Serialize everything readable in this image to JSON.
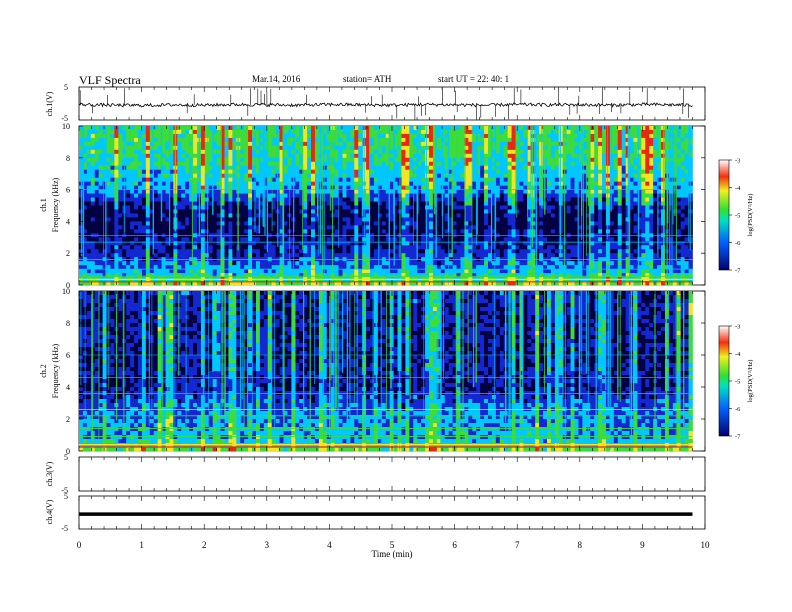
{
  "header": {
    "title": "VLF  Spectra",
    "date": "Mar.14,  2016",
    "station": "station= ATH",
    "start": "start  UT  =    22: 40: 1"
  },
  "colors": {
    "spec_dark": "#020040",
    "spec_blue": "#1428d2",
    "spec_cyan": "#00c8ff",
    "spec_green": "#3cdc3c",
    "spec_yellow": "#f0e628",
    "spec_red": "#e62814",
    "trace": "#000000"
  },
  "chart_data": [
    {
      "type": "line",
      "ylabel": "ch.1(V)",
      "ylim": [
        -5,
        5
      ],
      "y_ticks": [
        "5",
        "-5"
      ],
      "xlim": [
        0,
        10
      ],
      "x": [
        0,
        0.5,
        1,
        1.5,
        2,
        2.5,
        3,
        3.5,
        4,
        4.5,
        5,
        5.5,
        6,
        6.5,
        7,
        7.5,
        8,
        8.5,
        9,
        9.5,
        9.8
      ],
      "y": [
        -0.3,
        -0.5,
        -0.6,
        -0.4,
        -0.5,
        -0.3,
        -0.4,
        -0.5,
        -0.3,
        -0.4,
        -0.5,
        -0.3,
        -0.4,
        -0.5,
        -0.3,
        -0.4,
        -0.4,
        -0.5,
        -0.3,
        -0.4,
        -0.5
      ]
    },
    {
      "type": "heatmap",
      "ylabel": "ch.1\nFrequency  (kHz)",
      "ylim": [
        0,
        10
      ],
      "y_ticks": [
        "0",
        "2",
        "4",
        "6",
        "8",
        "10"
      ],
      "xlim": [
        0,
        10
      ],
      "data_end_min": 9.8,
      "colorbar": {
        "label": "log(PSD(V²/Hz)",
        "range": [
          -7,
          -3
        ],
        "ticks": [
          "-3",
          "-4",
          "-5",
          "-6",
          "-7"
        ]
      },
      "log_psd_profile": {
        "freq_khz": [
          0,
          0.5,
          1,
          2,
          3,
          4,
          5,
          6,
          7,
          8,
          9,
          10
        ],
        "mean": [
          -4.2,
          -5.2,
          -5.6,
          -6.2,
          -6.5,
          -6.7,
          -6.5,
          -5.6,
          -5.3,
          -5.0,
          -4.9,
          -4.9
        ]
      }
    },
    {
      "type": "heatmap",
      "ylabel": "ch.2\nFrequency  (kHz)",
      "ylim": [
        0,
        10
      ],
      "y_ticks": [
        "0",
        "2",
        "4",
        "6",
        "8",
        "10"
      ],
      "xlim": [
        0,
        10
      ],
      "data_end_min": 9.8,
      "colorbar": {
        "label": "log(PSD(V²/Hz)",
        "range": [
          -7,
          -3
        ],
        "ticks": [
          "-3",
          "-4",
          "-5",
          "-6",
          "-7"
        ]
      },
      "log_psd_profile": {
        "freq_khz": [
          0,
          0.5,
          1,
          2,
          3,
          4,
          5,
          6,
          7,
          8,
          9,
          10
        ],
        "mean": [
          -4.4,
          -5.3,
          -5.5,
          -5.6,
          -5.9,
          -6.4,
          -6.3,
          -6.5,
          -6.3,
          -6.4,
          -6.3,
          -6.2
        ]
      }
    },
    {
      "type": "line",
      "ylabel": "ch.3(V)",
      "ylim": [
        -5,
        5
      ],
      "y_ticks": [
        "5",
        "-5"
      ],
      "xlim": [
        0,
        10
      ],
      "x": [],
      "y": []
    },
    {
      "type": "line",
      "ylabel": "ch.4(V)",
      "ylim": [
        -5,
        5
      ],
      "y_ticks": [
        "5",
        "-5"
      ],
      "xlim": [
        0,
        10
      ],
      "x": [
        0,
        9.8
      ],
      "y": [
        -0.5,
        -0.5
      ]
    }
  ],
  "x_axis": {
    "label": "Time  (min)",
    "ticks": [
      "0",
      "1",
      "2",
      "3",
      "4",
      "5",
      "6",
      "7",
      "8",
      "9",
      "10"
    ]
  }
}
